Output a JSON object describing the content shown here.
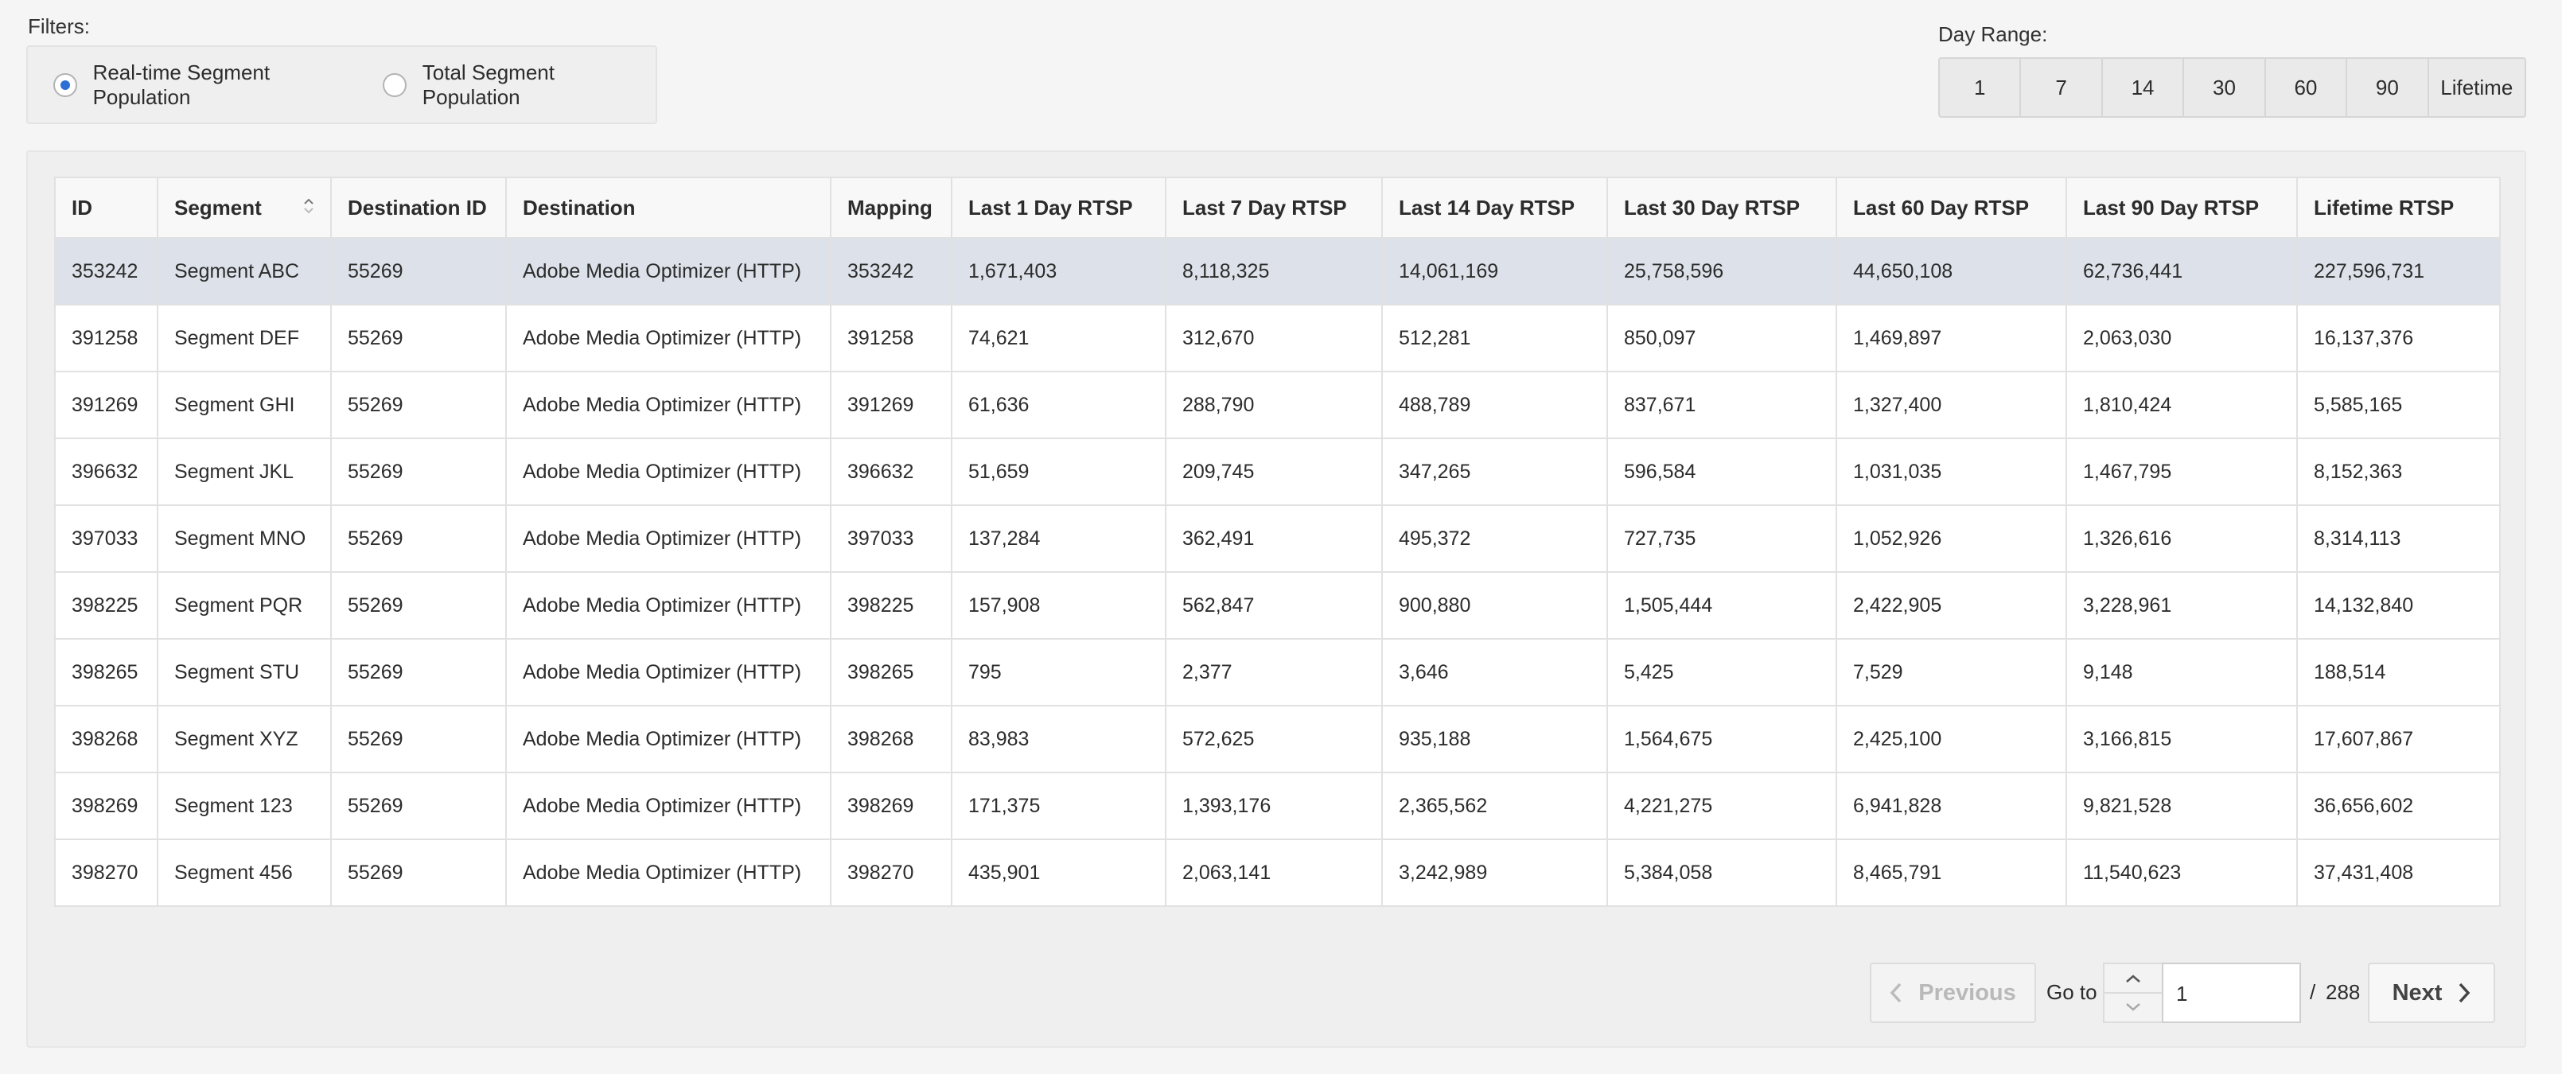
{
  "filters": {
    "label": "Filters:",
    "options": [
      "Real-time Segment Population",
      "Total Segment Population"
    ],
    "selected": 0
  },
  "day_range": {
    "label": "Day Range:",
    "options": [
      "1",
      "7",
      "14",
      "30",
      "60",
      "90",
      "Lifetime"
    ]
  },
  "table": {
    "columns": [
      "ID",
      "Segment",
      "Destination ID",
      "Destination",
      "Mapping",
      "Last 1 Day RTSP",
      "Last 7 Day RTSP",
      "Last 14 Day RTSP",
      "Last 30 Day RTSP",
      "Last 60 Day RTSP",
      "Last 90 Day RTSP",
      "Lifetime RTSP"
    ],
    "selected_row": 0,
    "rows": [
      [
        "353242",
        "Segment ABC",
        "55269",
        "Adobe Media Optimizer (HTTP)",
        "353242",
        "1,671,403",
        "8,118,325",
        "14,061,169",
        "25,758,596",
        "44,650,108",
        "62,736,441",
        "227,596,731"
      ],
      [
        "391258",
        "Segment DEF",
        "55269",
        "Adobe Media Optimizer (HTTP)",
        "391258",
        "74,621",
        "312,670",
        "512,281",
        "850,097",
        "1,469,897",
        "2,063,030",
        "16,137,376"
      ],
      [
        "391269",
        "Segment GHI",
        "55269",
        "Adobe Media Optimizer (HTTP)",
        "391269",
        "61,636",
        "288,790",
        "488,789",
        "837,671",
        "1,327,400",
        "1,810,424",
        "5,585,165"
      ],
      [
        "396632",
        "Segment JKL",
        "55269",
        "Adobe Media Optimizer (HTTP)",
        "396632",
        "51,659",
        "209,745",
        "347,265",
        "596,584",
        "1,031,035",
        "1,467,795",
        "8,152,363"
      ],
      [
        "397033",
        "Segment MNO",
        "55269",
        "Adobe Media Optimizer (HTTP)",
        "397033",
        "137,284",
        "362,491",
        "495,372",
        "727,735",
        "1,052,926",
        "1,326,616",
        "8,314,113"
      ],
      [
        "398225",
        "Segment PQR",
        "55269",
        "Adobe Media Optimizer (HTTP)",
        "398225",
        "157,908",
        "562,847",
        "900,880",
        "1,505,444",
        "2,422,905",
        "3,228,961",
        "14,132,840"
      ],
      [
        "398265",
        "Segment STU",
        "55269",
        "Adobe Media Optimizer (HTTP)",
        "398265",
        "795",
        "2,377",
        "3,646",
        "5,425",
        "7,529",
        "9,148",
        "188,514"
      ],
      [
        "398268",
        "Segment XYZ",
        "55269",
        "Adobe Media Optimizer (HTTP)",
        "398268",
        "83,983",
        "572,625",
        "935,188",
        "1,564,675",
        "2,425,100",
        "3,166,815",
        "17,607,867"
      ],
      [
        "398269",
        "Segment 123",
        "55269",
        "Adobe Media Optimizer (HTTP)",
        "398269",
        "171,375",
        "1,393,176",
        "2,365,562",
        "4,221,275",
        "6,941,828",
        "9,821,528",
        "36,656,602"
      ],
      [
        "398270",
        "Segment 456",
        "55269",
        "Adobe Media Optimizer (HTTP)",
        "398270",
        "435,901",
        "2,063,141",
        "3,242,989",
        "5,384,058",
        "8,465,791",
        "11,540,623",
        "37,431,408"
      ]
    ]
  },
  "pagination": {
    "previous": "Previous",
    "goto": "Go to",
    "current": "1",
    "separator": "/",
    "total": "288",
    "next": "Next"
  }
}
